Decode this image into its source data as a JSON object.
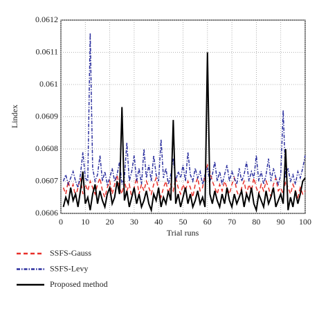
{
  "chart_data": {
    "type": "line",
    "x_label": "Trial runs",
    "y_label": "Lindex",
    "x": [
      1,
      2,
      3,
      4,
      5,
      6,
      7,
      8,
      9,
      10,
      11,
      12,
      13,
      14,
      15,
      16,
      17,
      18,
      19,
      20,
      21,
      22,
      23,
      24,
      25,
      26,
      27,
      28,
      29,
      30,
      31,
      32,
      33,
      34,
      35,
      36,
      37,
      38,
      39,
      40,
      41,
      42,
      43,
      44,
      45,
      46,
      47,
      48,
      49,
      50,
      51,
      52,
      53,
      54,
      55,
      56,
      57,
      58,
      59,
      60,
      61,
      62,
      63,
      64,
      65,
      66,
      67,
      68,
      69,
      70,
      71,
      72,
      73,
      74,
      75,
      76,
      77,
      78,
      79,
      80,
      81,
      82,
      83,
      84,
      85,
      86,
      87,
      88,
      89,
      90,
      91,
      92,
      93,
      94,
      95,
      96,
      97,
      98,
      99,
      100
    ],
    "series": [
      {
        "name": "SSFS-Gauss",
        "color": "#e8302a",
        "style": "dashed",
        "values": [
          0.06068,
          0.06066,
          0.0607,
          0.06067,
          0.06069,
          0.06065,
          0.06068,
          0.06071,
          0.06066,
          0.06069,
          0.06067,
          0.0607,
          0.06068,
          0.06066,
          0.06069,
          0.06071,
          0.06067,
          0.06065,
          0.06068,
          0.0607,
          0.06066,
          0.06069,
          0.06072,
          0.06068,
          0.06066,
          0.0607,
          0.06067,
          0.06069,
          0.06065,
          0.06068,
          0.06071,
          0.06066,
          0.06069,
          0.06067,
          0.0607,
          0.06068,
          0.06066,
          0.06069,
          0.06071,
          0.06067,
          0.06065,
          0.06068,
          0.0607,
          0.06066,
          0.06069,
          0.06067,
          0.06071,
          0.06068,
          0.06066,
          0.06069,
          0.06067,
          0.0607,
          0.06068,
          0.06065,
          0.06069,
          0.06071,
          0.06067,
          0.06068,
          0.06072,
          0.06075,
          0.06073,
          0.0607,
          0.06068,
          0.06066,
          0.06069,
          0.06067,
          0.0607,
          0.06068,
          0.06066,
          0.06069,
          0.06071,
          0.06067,
          0.06065,
          0.06068,
          0.0607,
          0.06066,
          0.06069,
          0.06067,
          0.06071,
          0.06068,
          0.06066,
          0.06069,
          0.06067,
          0.0607,
          0.06068,
          0.06065,
          0.06069,
          0.06071,
          0.06067,
          0.06068,
          0.06066,
          0.0607,
          0.06068,
          0.06066,
          0.06069,
          0.06067,
          0.06065,
          0.06068,
          0.06066,
          0.06067
        ]
      },
      {
        "name": "SSFS-Levy",
        "color": "#2b2f9e",
        "style": "dashdot",
        "values": [
          0.0607,
          0.06072,
          0.06069,
          0.06071,
          0.06073,
          0.0607,
          0.06068,
          0.06072,
          0.06079,
          0.06071,
          0.0607,
          0.06116,
          0.06074,
          0.0607,
          0.06072,
          0.06078,
          0.0607,
          0.06073,
          0.06069,
          0.06071,
          0.06074,
          0.0607,
          0.06072,
          0.06076,
          0.06069,
          0.06071,
          0.06082,
          0.0607,
          0.06073,
          0.06078,
          0.0607,
          0.06074,
          0.06069,
          0.0608,
          0.06071,
          0.06075,
          0.0607,
          0.06078,
          0.06072,
          0.0607,
          0.06083,
          0.06071,
          0.06074,
          0.06069,
          0.06072,
          0.06077,
          0.0607,
          0.06073,
          0.06071,
          0.06075,
          0.0607,
          0.06079,
          0.06072,
          0.0607,
          0.06074,
          0.06071,
          0.06073,
          0.06069,
          0.06072,
          0.06074,
          0.0607,
          0.06072,
          0.06076,
          0.0607,
          0.06073,
          0.06069,
          0.06072,
          0.06075,
          0.0607,
          0.06073,
          0.06071,
          0.06069,
          0.06074,
          0.0607,
          0.06072,
          0.06076,
          0.0607,
          0.06073,
          0.06071,
          0.06078,
          0.0607,
          0.06073,
          0.06069,
          0.06072,
          0.06077,
          0.0607,
          0.06074,
          0.06071,
          0.06069,
          0.06072,
          0.06092,
          0.06071,
          0.06074,
          0.0607,
          0.06072,
          0.06069,
          0.06073,
          0.06071,
          0.06074,
          0.06078
        ]
      },
      {
        "name": "Proposed method",
        "color": "#000000",
        "style": "solid",
        "values": [
          0.06062,
          0.06065,
          0.06063,
          0.06068,
          0.06064,
          0.06066,
          0.06062,
          0.06067,
          0.06073,
          0.06063,
          0.06065,
          0.06061,
          0.06066,
          0.06069,
          0.06063,
          0.06067,
          0.06064,
          0.06062,
          0.06066,
          0.06068,
          0.06063,
          0.06065,
          0.0607,
          0.06066,
          0.06093,
          0.06064,
          0.06067,
          0.06062,
          0.06065,
          0.06068,
          0.06063,
          0.06066,
          0.06062,
          0.06064,
          0.06067,
          0.06063,
          0.06061,
          0.06066,
          0.06064,
          0.06068,
          0.06062,
          0.06065,
          0.06063,
          0.06067,
          0.06064,
          0.06089,
          0.06063,
          0.06066,
          0.06062,
          0.06065,
          0.06068,
          0.06063,
          0.06066,
          0.06062,
          0.06064,
          0.06067,
          0.06063,
          0.06065,
          0.06062,
          0.0611,
          0.06066,
          0.06063,
          0.06067,
          0.06064,
          0.06062,
          0.06066,
          0.06063,
          0.06068,
          0.06064,
          0.06062,
          0.06066,
          0.06063,
          0.06065,
          0.06067,
          0.06062,
          0.06066,
          0.06064,
          0.06068,
          0.06063,
          0.06061,
          0.06066,
          0.06064,
          0.06062,
          0.06067,
          0.06063,
          0.06065,
          0.06068,
          0.06062,
          0.06064,
          0.06066,
          0.06063,
          0.0608,
          0.06061,
          0.06065,
          0.06062,
          0.06067,
          0.06063,
          0.06066,
          0.0607,
          0.06071
        ]
      }
    ],
    "xlim": [
      0,
      100
    ],
    "xticks": [
      0,
      10,
      20,
      30,
      40,
      50,
      60,
      70,
      80,
      90,
      100
    ],
    "ylim": [
      0.0606,
      0.0612
    ],
    "yticks": [
      0.0606,
      0.0607,
      0.0608,
      0.0609,
      0.061,
      0.0611,
      0.0612
    ],
    "grid": true,
    "legend": "below"
  }
}
